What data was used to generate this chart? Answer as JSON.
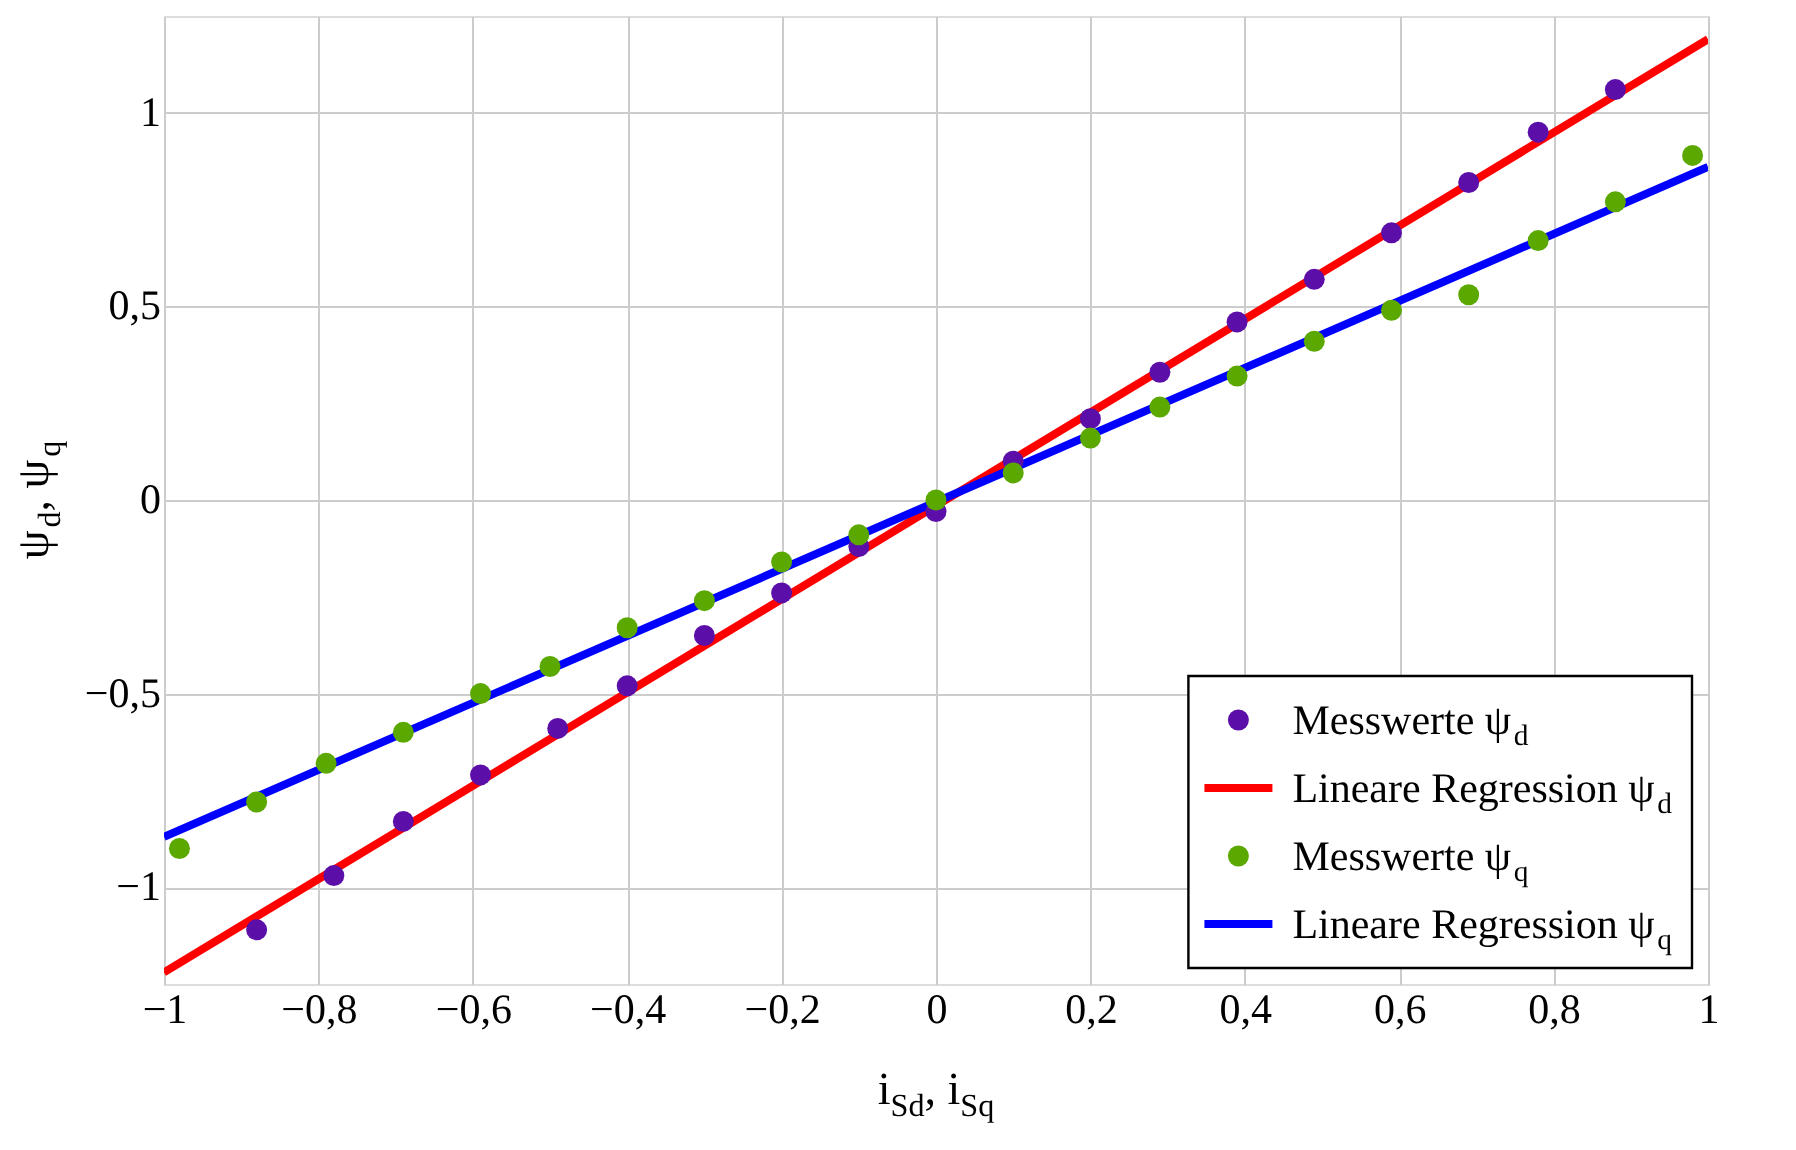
{
  "chart_data": {
    "type": "scatter",
    "xlabel": "i$_{Sd}$, i$_{Sq}$",
    "ylabel": "ψ$_{d}$, ψ$_{q}$",
    "xlim": [
      -1,
      1
    ],
    "ylim": [
      -1.25,
      1.25
    ],
    "xticks": [
      {
        "value": -1,
        "label": "−1"
      },
      {
        "value": -0.8,
        "label": "−0,8"
      },
      {
        "value": -0.6,
        "label": "−0,6"
      },
      {
        "value": -0.4,
        "label": "−0,4"
      },
      {
        "value": -0.2,
        "label": "−0,2"
      },
      0,
      {
        "value": 0.2,
        "label": "0,2"
      },
      {
        "value": 0.4,
        "label": "0,4"
      },
      {
        "value": 0.6,
        "label": "0,6"
      },
      {
        "value": 0.8,
        "label": "0,8"
      },
      1
    ],
    "yticks": [
      {
        "value": -1,
        "label": "−1"
      },
      {
        "value": -0.5,
        "label": "−0,5"
      },
      0,
      {
        "value": 0.5,
        "label": "0,5"
      },
      1
    ],
    "grid": true,
    "legend": "bottom right",
    "series": [
      {
        "name": "Messwerte ψ$_{d}$",
        "marker": "circle",
        "color": "#5b0fa8",
        "x": [
          -0.88,
          -0.78,
          -0.69,
          -0.59,
          -0.49,
          -0.4,
          -0.3,
          -0.2,
          -0.1,
          0,
          0.1,
          0.2,
          0.29,
          0.39,
          0.49,
          0.59,
          0.69,
          0.78,
          0.88
        ],
        "values": [
          -1.11,
          -0.97,
          -0.83,
          -0.71,
          -0.59,
          -0.48,
          -0.35,
          -0.24,
          -0.12,
          -0.03,
          0.1,
          0.21,
          0.33,
          0.46,
          0.57,
          0.69,
          0.82,
          0.95,
          1.06
        ]
      },
      {
        "name": "Lineare Regression ψ$_{d}$",
        "type": "line",
        "color": "#ff0000",
        "x": [
          -1,
          1
        ],
        "values": [
          -1.22,
          1.19
        ]
      },
      {
        "name": "Messwerte ψ$_{q}$",
        "marker": "circle",
        "color": "#5aa800",
        "x": [
          -0.98,
          -0.88,
          -0.79,
          -0.69,
          -0.59,
          -0.5,
          -0.4,
          -0.3,
          -0.2,
          -0.1,
          0,
          0.1,
          0.2,
          0.29,
          0.39,
          0.49,
          0.59,
          0.69,
          0.78,
          0.88,
          0.98
        ],
        "values": [
          -0.9,
          -0.78,
          -0.68,
          -0.6,
          -0.5,
          -0.43,
          -0.33,
          -0.26,
          -0.16,
          -0.09,
          0,
          0.07,
          0.16,
          0.24,
          0.32,
          0.41,
          0.49,
          0.53,
          0.67,
          0.77,
          0.89
        ]
      },
      {
        "name": "Lineare Regression ψ$_{q}$",
        "type": "line",
        "color": "#0000ff",
        "x": [
          -1,
          1
        ],
        "values": [
          -0.87,
          0.86
        ]
      }
    ]
  }
}
